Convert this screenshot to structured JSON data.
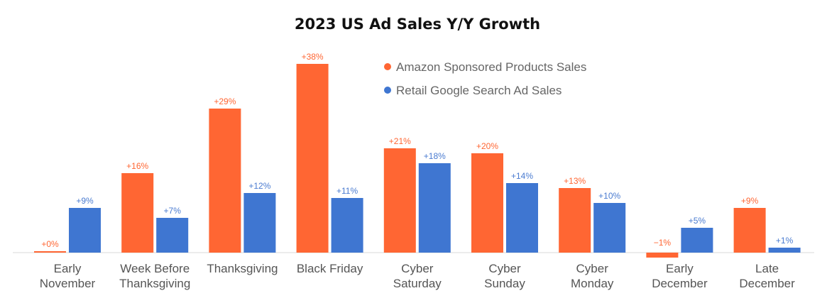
{
  "chart_data": {
    "type": "bar",
    "title": "2023 US Ad Sales Y/Y Growth",
    "xlabel": "",
    "ylabel": "",
    "categories": [
      [
        "Early",
        "November"
      ],
      [
        "Week Before",
        "Thanksgiving"
      ],
      [
        "Thanksgiving"
      ],
      [
        "Black Friday"
      ],
      [
        "Cyber",
        "Saturday"
      ],
      [
        "Cyber",
        "Sunday"
      ],
      [
        "Cyber",
        "Monday"
      ],
      [
        "Early",
        "December"
      ],
      [
        "Late",
        "December"
      ]
    ],
    "series": [
      {
        "name": "Amazon Sponsored Products Sales",
        "color": "#FF6633",
        "label_color": "#FF6633",
        "values": [
          0,
          16,
          29,
          38,
          21,
          20,
          13,
          -1,
          9
        ],
        "labels": [
          "+0%",
          "+16%",
          "+29%",
          "+38%",
          "+21%",
          "+20%",
          "+13%",
          "−1%",
          "+9%"
        ]
      },
      {
        "name": "Retail Google Search Ad Sales",
        "color": "#3F76D1",
        "label_color": "#4A7BD0",
        "values": [
          9,
          7,
          12,
          11,
          18,
          14,
          10,
          5,
          1
        ],
        "labels": [
          "+9%",
          "+7%",
          "+12%",
          "+11%",
          "+18%",
          "+14%",
          "+10%",
          "+5%",
          "+1%"
        ]
      }
    ],
    "ylim": [
      -1,
      38
    ],
    "grid": false,
    "legend_position": "top-center"
  }
}
